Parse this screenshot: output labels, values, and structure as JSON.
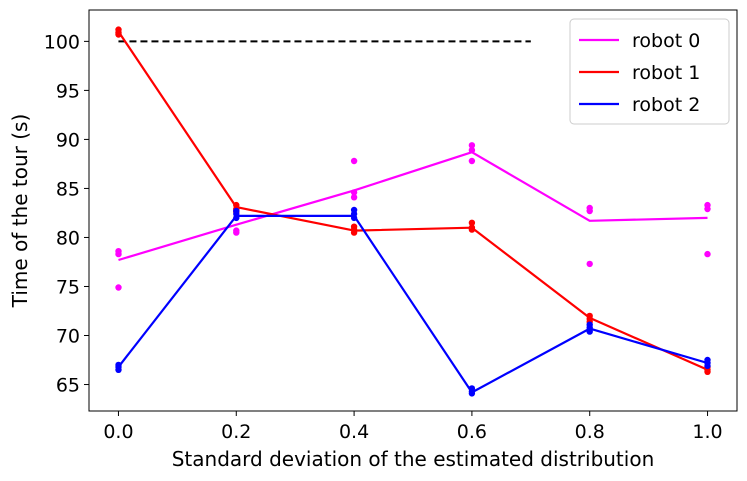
{
  "chart_data": {
    "type": "line",
    "title": "",
    "xlabel": "Standard deviation of the estimated distribution",
    "ylabel": "Time of the tour (s)",
    "xlim": [
      -0.05,
      1.05
    ],
    "ylim": [
      62.3,
      103.2
    ],
    "x_ticks": [
      "0.0",
      "0.2",
      "0.4",
      "0.6",
      "0.8",
      "1.0"
    ],
    "y_ticks": [
      "65",
      "70",
      "75",
      "80",
      "85",
      "90",
      "95",
      "100"
    ],
    "x_tick_values": [
      0.0,
      0.2,
      0.4,
      0.6,
      0.8,
      1.0
    ],
    "y_tick_values": [
      65,
      70,
      75,
      80,
      85,
      90,
      95,
      100
    ],
    "reference_line": {
      "y": 100,
      "x_start": 0.0,
      "x_end": 0.7,
      "color": "#000000",
      "style": "dashed"
    },
    "legend_position": "top-right",
    "series": [
      {
        "name": "robot 0",
        "color": "#ff00ff",
        "x": [
          0.0,
          0.2,
          0.4,
          0.6,
          0.8,
          1.0
        ],
        "mean": [
          77.7,
          81.3,
          84.8,
          88.7,
          81.7,
          82.0
        ],
        "points": [
          [
            0.0,
            78.6
          ],
          [
            0.0,
            78.3
          ],
          [
            0.0,
            74.9
          ],
          [
            0.2,
            82.8
          ],
          [
            0.2,
            80.7
          ],
          [
            0.2,
            80.5
          ],
          [
            0.4,
            87.8
          ],
          [
            0.4,
            84.6
          ],
          [
            0.4,
            84.1
          ],
          [
            0.6,
            89.4
          ],
          [
            0.6,
            88.9
          ],
          [
            0.6,
            87.8
          ],
          [
            0.8,
            83.0
          ],
          [
            0.8,
            82.7
          ],
          [
            0.8,
            77.3
          ],
          [
            1.0,
            83.3
          ],
          [
            1.0,
            82.9
          ],
          [
            1.0,
            78.3
          ]
        ]
      },
      {
        "name": "robot 1",
        "color": "#ff0000",
        "x": [
          0.0,
          0.2,
          0.4,
          0.6,
          0.8,
          1.0
        ],
        "mean": [
          101.0,
          83.1,
          80.7,
          81.0,
          71.8,
          66.5
        ],
        "points": [
          [
            0.0,
            101.2
          ],
          [
            0.0,
            100.9
          ],
          [
            0.0,
            100.7
          ],
          [
            0.2,
            83.3
          ],
          [
            0.2,
            82.9
          ],
          [
            0.2,
            82.6
          ],
          [
            0.4,
            81.1
          ],
          [
            0.4,
            80.8
          ],
          [
            0.4,
            80.5
          ],
          [
            0.6,
            81.5
          ],
          [
            0.6,
            81.0
          ],
          [
            0.6,
            80.8
          ],
          [
            0.8,
            72.0
          ],
          [
            0.8,
            71.7
          ],
          [
            0.8,
            71.4
          ],
          [
            1.0,
            66.8
          ],
          [
            1.0,
            66.5
          ],
          [
            1.0,
            66.3
          ]
        ]
      },
      {
        "name": "robot 2",
        "color": "#0000ff",
        "x": [
          0.0,
          0.2,
          0.4,
          0.6,
          0.8,
          1.0
        ],
        "mean": [
          66.8,
          82.2,
          82.2,
          64.2,
          70.7,
          67.2
        ],
        "points": [
          [
            0.0,
            67.0
          ],
          [
            0.0,
            66.8
          ],
          [
            0.0,
            66.5
          ],
          [
            0.2,
            82.7
          ],
          [
            0.2,
            82.4
          ],
          [
            0.2,
            82.0
          ],
          [
            0.4,
            82.8
          ],
          [
            0.4,
            82.4
          ],
          [
            0.4,
            82.0
          ],
          [
            0.6,
            64.6
          ],
          [
            0.6,
            64.3
          ],
          [
            0.6,
            64.1
          ],
          [
            0.8,
            71.1
          ],
          [
            0.8,
            70.8
          ],
          [
            0.8,
            70.4
          ],
          [
            1.0,
            67.5
          ],
          [
            1.0,
            67.2
          ],
          [
            1.0,
            66.9
          ]
        ]
      }
    ]
  }
}
